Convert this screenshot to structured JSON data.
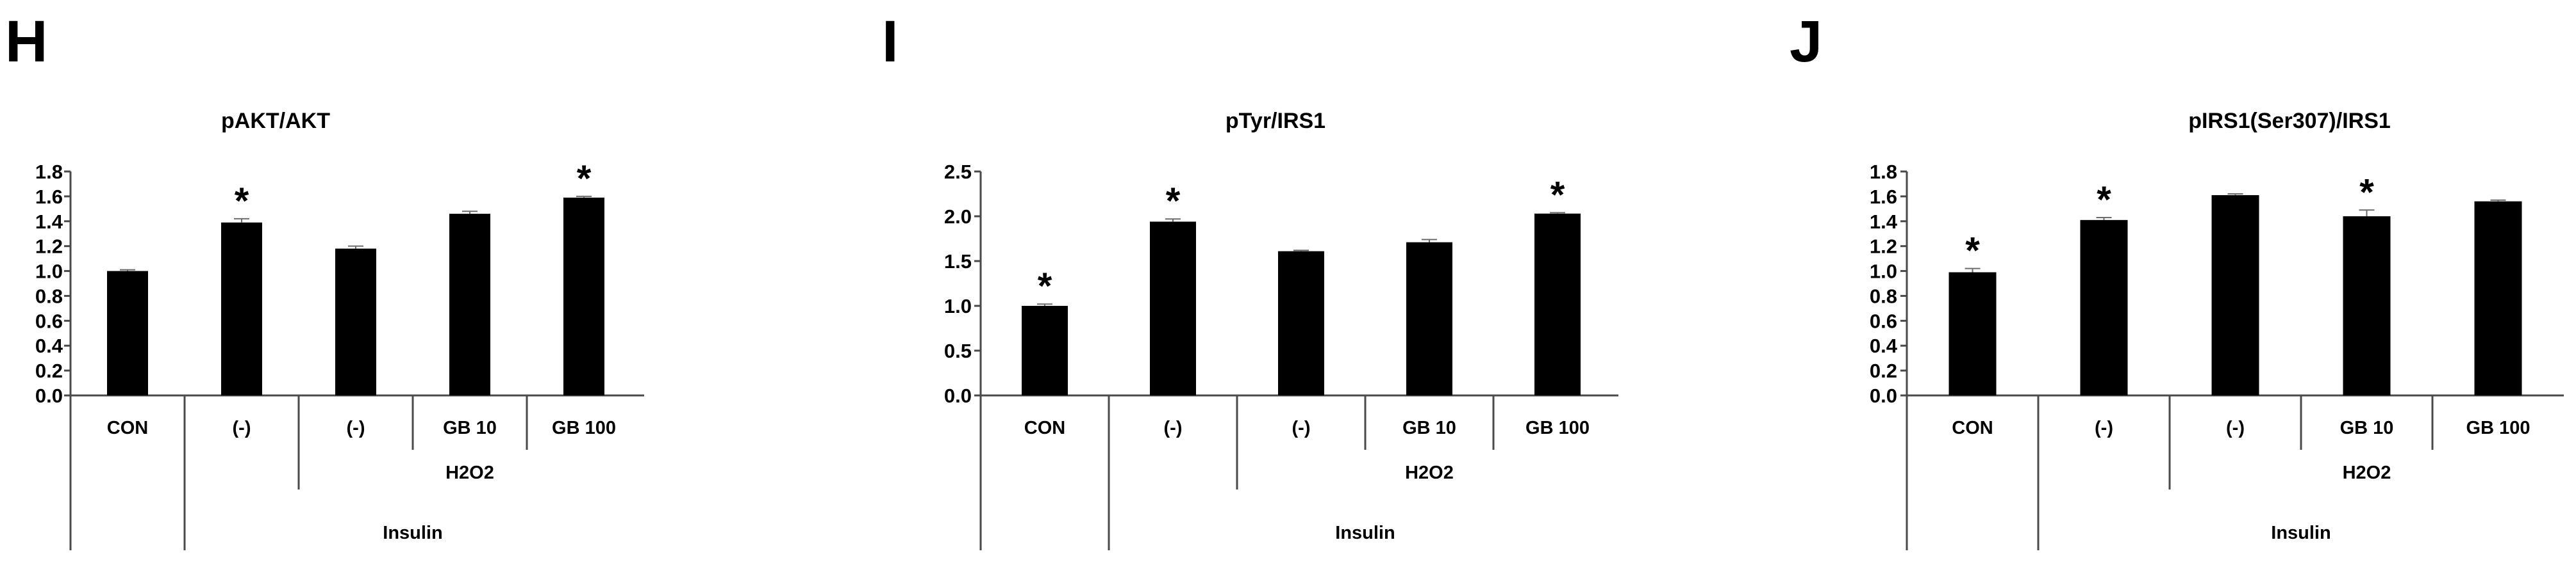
{
  "chart_data": [
    {
      "panel": "H",
      "type": "bar",
      "title": "pAKT/AKT",
      "categories": [
        "CON",
        "(-)",
        "(-)",
        "GB 10",
        "GB 100"
      ],
      "values": [
        1.0,
        1.39,
        1.18,
        1.46,
        1.59
      ],
      "errors": [
        0.01,
        0.03,
        0.02,
        0.02,
        0.01
      ],
      "significant": [
        "",
        "*",
        "",
        "",
        "*"
      ],
      "ylim": [
        0,
        1.8
      ],
      "yticks": [
        "0.0",
        "0.2",
        "0.4",
        "0.6",
        "0.8",
        "1.0",
        "1.2",
        "1.4",
        "1.6",
        "1.8"
      ],
      "group_labels": {
        "h2o2": "H2O2",
        "insulin": "Insulin"
      },
      "xlabel": "",
      "ylabel": "",
      "grid": false,
      "bar_color": "#000000"
    },
    {
      "panel": "I",
      "type": "bar",
      "title": "pTyr/IRS1",
      "categories": [
        "CON",
        "(-)",
        "(-)",
        "GB 10",
        "GB 100"
      ],
      "values": [
        1.0,
        1.94,
        1.61,
        1.71,
        2.03
      ],
      "errors": [
        0.02,
        0.03,
        0.01,
        0.03,
        0.01
      ],
      "significant": [
        "*",
        "*",
        "",
        "",
        "*"
      ],
      "ylim": [
        0,
        2.5
      ],
      "yticks": [
        "0.0",
        "0.5",
        "1.0",
        "1.5",
        "2.0",
        "2.5"
      ],
      "group_labels": {
        "h2o2": "H2O2",
        "insulin": "Insulin"
      },
      "xlabel": "",
      "ylabel": "",
      "grid": false,
      "bar_color": "#000000"
    },
    {
      "panel": "J",
      "type": "bar",
      "title": "pIRS1(Ser307)/IRS1",
      "categories": [
        "CON",
        "(-)",
        "(-)",
        "GB 10",
        "GB 100"
      ],
      "values": [
        0.99,
        1.41,
        1.61,
        1.44,
        1.56
      ],
      "errors": [
        0.03,
        0.02,
        0.01,
        0.05,
        0.01
      ],
      "significant": [
        "*",
        "*",
        "",
        "*",
        ""
      ],
      "ylim": [
        0,
        1.8
      ],
      "yticks": [
        "0.0",
        "0.2",
        "0.4",
        "0.6",
        "0.8",
        "1.0",
        "1.2",
        "1.4",
        "1.6",
        "1.8"
      ],
      "group_labels": {
        "h2o2": "H2O2",
        "insulin": "Insulin"
      },
      "xlabel": "",
      "ylabel": "",
      "grid": false,
      "bar_color": "#000000"
    }
  ]
}
